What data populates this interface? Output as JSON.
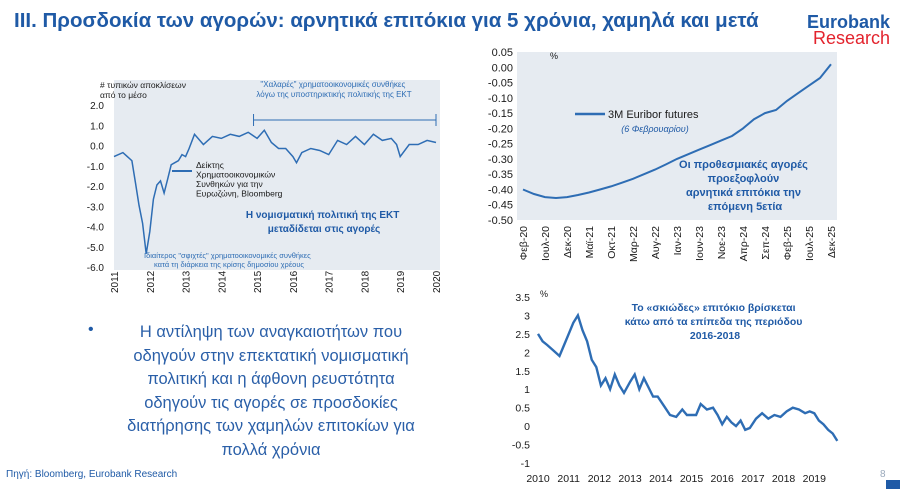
{
  "header": {
    "title": "III. Προσδοκία των αγορών: αρνητικά επιτόκια για 5 χρόνια, χαμηλά και μετά",
    "brand_name": "Eurobank",
    "brand_sub": "Research"
  },
  "colors": {
    "line": "#2e6db4",
    "text_blue": "#1f5aa6",
    "accent_red": "#e3232d",
    "panel_bg": "#e6ebf1"
  },
  "bullet": {
    "text": "Η αντίληψη των αναγκαιοτήτων που οδηγούν στην επεκτατική νομισματική πολιτική και η άφθονη ρευστότητα οδηγούν τις αγορές σε προσδοκίες διατήρησης των χαμηλών επιτοκίων για πολλά χρόνια"
  },
  "footer": {
    "source": "Πηγή: Bloomberg, Eurobank Research",
    "page": "8"
  },
  "chart_data": [
    {
      "type": "line",
      "ylabel": "# τυπικών αποκλίσεων από το μέσο",
      "x_ticks": [
        "2011",
        "2012",
        "2013",
        "2014",
        "2015",
        "2016",
        "2017",
        "2018",
        "2019",
        "2020"
      ],
      "xlim": [
        2011,
        2020
      ],
      "y_ticks": [
        "2.0",
        "1.0",
        "0.0",
        "-1.0",
        "-2.0",
        "-3.0",
        "-4.0",
        "-5.0",
        "-6.0"
      ],
      "ylim": [
        -6,
        2
      ],
      "legend": "Δείκτης Χρηματοοικονομικών Συνθηκών για την Ευρωζώνη, Bloomberg",
      "annotation_top": "\"Χαλαρές\" χρηματοοικονομικές συνθήκες λόγω της υποστηρικτικής πολιτικής της ΕΚΤ",
      "annotation_bottom": "Ιδιαίτερος \"σφιχτές\" χρηματοοικονομικές συνθήκες κατά τη διάρκεια της κρίσης δημοσίου χρέους",
      "annotation_center": "Η νομισματική πολιτική της ΕΚΤ μεταδίδεται στις αγορές",
      "x": [
        2011.0,
        2011.25,
        2011.5,
        2011.6,
        2011.7,
        2011.8,
        2011.9,
        2012.0,
        2012.1,
        2012.2,
        2012.3,
        2012.4,
        2012.5,
        2012.6,
        2012.7,
        2012.8,
        2012.9,
        2013.0,
        2013.1,
        2013.25,
        2013.5,
        2013.75,
        2014.0,
        2014.25,
        2014.5,
        2014.75,
        2015.0,
        2015.2,
        2015.4,
        2015.6,
        2015.8,
        2016.0,
        2016.1,
        2016.25,
        2016.5,
        2016.75,
        2017.0,
        2017.25,
        2017.5,
        2017.75,
        2018.0,
        2018.25,
        2018.5,
        2018.75,
        2018.9,
        2019.0,
        2019.25,
        2019.5,
        2019.75,
        2020.0
      ],
      "values": [
        -0.5,
        -0.3,
        -0.7,
        -1.8,
        -2.9,
        -3.8,
        -5.3,
        -4.2,
        -2.6,
        -1.9,
        -1.7,
        -2.3,
        -1.6,
        -0.9,
        -0.8,
        -0.7,
        -0.4,
        -0.5,
        -0.1,
        0.6,
        0.1,
        0.5,
        0.4,
        0.6,
        0.5,
        0.7,
        0.4,
        0.8,
        0.2,
        -0.1,
        -0.1,
        -0.5,
        -0.8,
        -0.3,
        -0.1,
        -0.2,
        -0.4,
        0.3,
        0.1,
        0.5,
        0.1,
        0.6,
        0.3,
        0.4,
        0.1,
        -0.5,
        0.1,
        0.1,
        0.3,
        0.2
      ]
    },
    {
      "type": "line",
      "ylabel": "%",
      "legend": "3M Euribor futures",
      "legend_note": "(6 Φεβρουαρίου)",
      "annotation": "Οι προθεσμιακές αγορές προεξοφλούν αρνητικά επιτόκια την επόμενη 5ετία",
      "x_ticks": [
        "Φεβ-20",
        "Ιουλ-20",
        "Δεκ-20",
        "Μαϊ-21",
        "Οκτ-21",
        "Μαρ-22",
        "Αυγ-22",
        "Ιαν-23",
        "Ιουν-23",
        "Νοε-23",
        "Απρ-24",
        "Σεπ-24",
        "Φεβ-25",
        "Ιουλ-25",
        "Δεκ-25"
      ],
      "y_ticks": [
        "0.05",
        "0.00",
        "-0.05",
        "-0.10",
        "-0.15",
        "-0.20",
        "-0.25",
        "-0.30",
        "-0.35",
        "-0.40",
        "-0.45",
        "-0.50"
      ],
      "ylim": [
        -0.5,
        0.05
      ],
      "x": [
        0,
        0.5,
        1,
        1.5,
        2,
        2.5,
        3,
        3.5,
        4,
        4.5,
        5,
        5.5,
        6,
        6.5,
        7,
        7.5,
        8,
        8.5,
        9,
        9.5,
        10,
        10.5,
        11,
        11.5,
        12,
        12.5,
        13,
        13.5,
        14
      ],
      "values": [
        -0.4,
        -0.415,
        -0.425,
        -0.428,
        -0.425,
        -0.418,
        -0.41,
        -0.4,
        -0.39,
        -0.378,
        -0.365,
        -0.35,
        -0.335,
        -0.318,
        -0.3,
        -0.285,
        -0.27,
        -0.255,
        -0.24,
        -0.225,
        -0.2,
        -0.17,
        -0.15,
        -0.14,
        -0.11,
        -0.085,
        -0.06,
        -0.035,
        0.01
      ]
    },
    {
      "type": "line",
      "ylabel": "%",
      "annotation": "Το «σκιώδες» επιτόκιο βρίσκεται κάτω από τα επίπεδα της περιόδου 2016-2018",
      "x_ticks": [
        "2010",
        "2011",
        "2012",
        "2013",
        "2014",
        "2015",
        "2016",
        "2017",
        "2018",
        "2019"
      ],
      "xlim": [
        2010,
        2020
      ],
      "y_ticks": [
        "3.5",
        "3",
        "2.5",
        "2",
        "1.5",
        "1",
        "0.5",
        "0",
        "-0.5",
        "-1"
      ],
      "ylim": [
        -1,
        3.5
      ],
      "x": [
        2010.0,
        2010.15,
        2010.3,
        2010.5,
        2010.7,
        2010.85,
        2011.0,
        2011.15,
        2011.3,
        2011.45,
        2011.6,
        2011.75,
        2011.9,
        2012.05,
        2012.2,
        2012.35,
        2012.5,
        2012.65,
        2012.8,
        2013.0,
        2013.15,
        2013.3,
        2013.45,
        2013.6,
        2013.75,
        2013.9,
        2014.1,
        2014.3,
        2014.5,
        2014.7,
        2014.85,
        2015.0,
        2015.15,
        2015.3,
        2015.5,
        2015.7,
        2015.85,
        2016.0,
        2016.15,
        2016.3,
        2016.45,
        2016.6,
        2016.75,
        2016.9,
        2017.1,
        2017.3,
        2017.5,
        2017.7,
        2017.9,
        2018.1,
        2018.3,
        2018.5,
        2018.7,
        2018.85,
        2019.0,
        2019.15,
        2019.3,
        2019.45,
        2019.6,
        2019.75
      ],
      "values": [
        2.5,
        2.3,
        2.2,
        2.05,
        1.9,
        2.2,
        2.5,
        2.8,
        3.0,
        2.6,
        2.3,
        1.8,
        1.6,
        1.1,
        1.3,
        1.0,
        1.4,
        1.1,
        0.9,
        1.2,
        1.4,
        1.0,
        1.3,
        1.05,
        0.8,
        0.8,
        0.55,
        0.3,
        0.25,
        0.45,
        0.3,
        0.3,
        0.3,
        0.6,
        0.45,
        0.5,
        0.3,
        0.05,
        0.25,
        0.1,
        0.0,
        0.15,
        -0.1,
        -0.05,
        0.2,
        0.35,
        0.2,
        0.3,
        0.25,
        0.4,
        0.5,
        0.45,
        0.35,
        0.4,
        0.35,
        0.15,
        0.05,
        -0.1,
        -0.2,
        -0.4
      ]
    }
  ]
}
